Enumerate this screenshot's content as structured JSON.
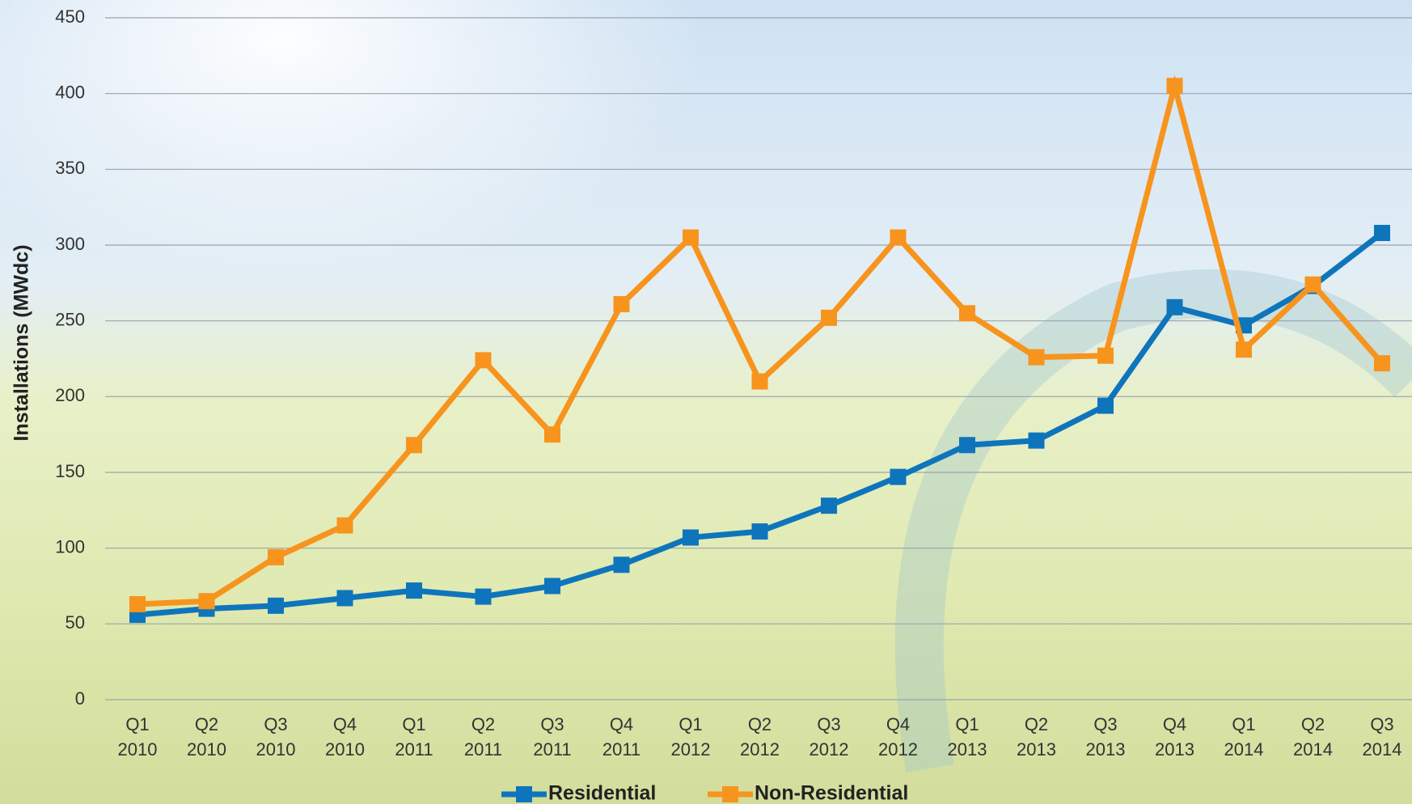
{
  "chart_data": {
    "type": "line",
    "ylabel": "Installations (MWdc)",
    "categories": [
      [
        "Q1",
        "2010"
      ],
      [
        "Q2",
        "2010"
      ],
      [
        "Q3",
        "2010"
      ],
      [
        "Q4",
        "2010"
      ],
      [
        "Q1",
        "2011"
      ],
      [
        "Q2",
        "2011"
      ],
      [
        "Q3",
        "2011"
      ],
      [
        "Q4",
        "2011"
      ],
      [
        "Q1",
        "2012"
      ],
      [
        "Q2",
        "2012"
      ],
      [
        "Q3",
        "2012"
      ],
      [
        "Q4",
        "2012"
      ],
      [
        "Q1",
        "2013"
      ],
      [
        "Q2",
        "2013"
      ],
      [
        "Q3",
        "2013"
      ],
      [
        "Q4",
        "2013"
      ],
      [
        "Q1",
        "2014"
      ],
      [
        "Q2",
        "2014"
      ],
      [
        "Q3",
        "2014"
      ]
    ],
    "series": [
      {
        "name": "Residential",
        "color": "#0e75bc",
        "values": [
          56,
          60,
          62,
          67,
          72,
          68,
          75,
          89,
          107,
          111,
          128,
          147,
          168,
          171,
          194,
          259,
          247,
          273,
          308
        ]
      },
      {
        "name": "Non-Residential",
        "color": "#f7941d",
        "values": [
          63,
          65,
          94,
          115,
          168,
          224,
          175,
          261,
          305,
          210,
          252,
          305,
          255,
          226,
          227,
          405,
          231,
          274,
          222
        ]
      }
    ],
    "ylim": [
      0,
      450
    ],
    "yticks": [
      0,
      50,
      100,
      150,
      200,
      250,
      300,
      350,
      400,
      450
    ],
    "grid": true
  }
}
